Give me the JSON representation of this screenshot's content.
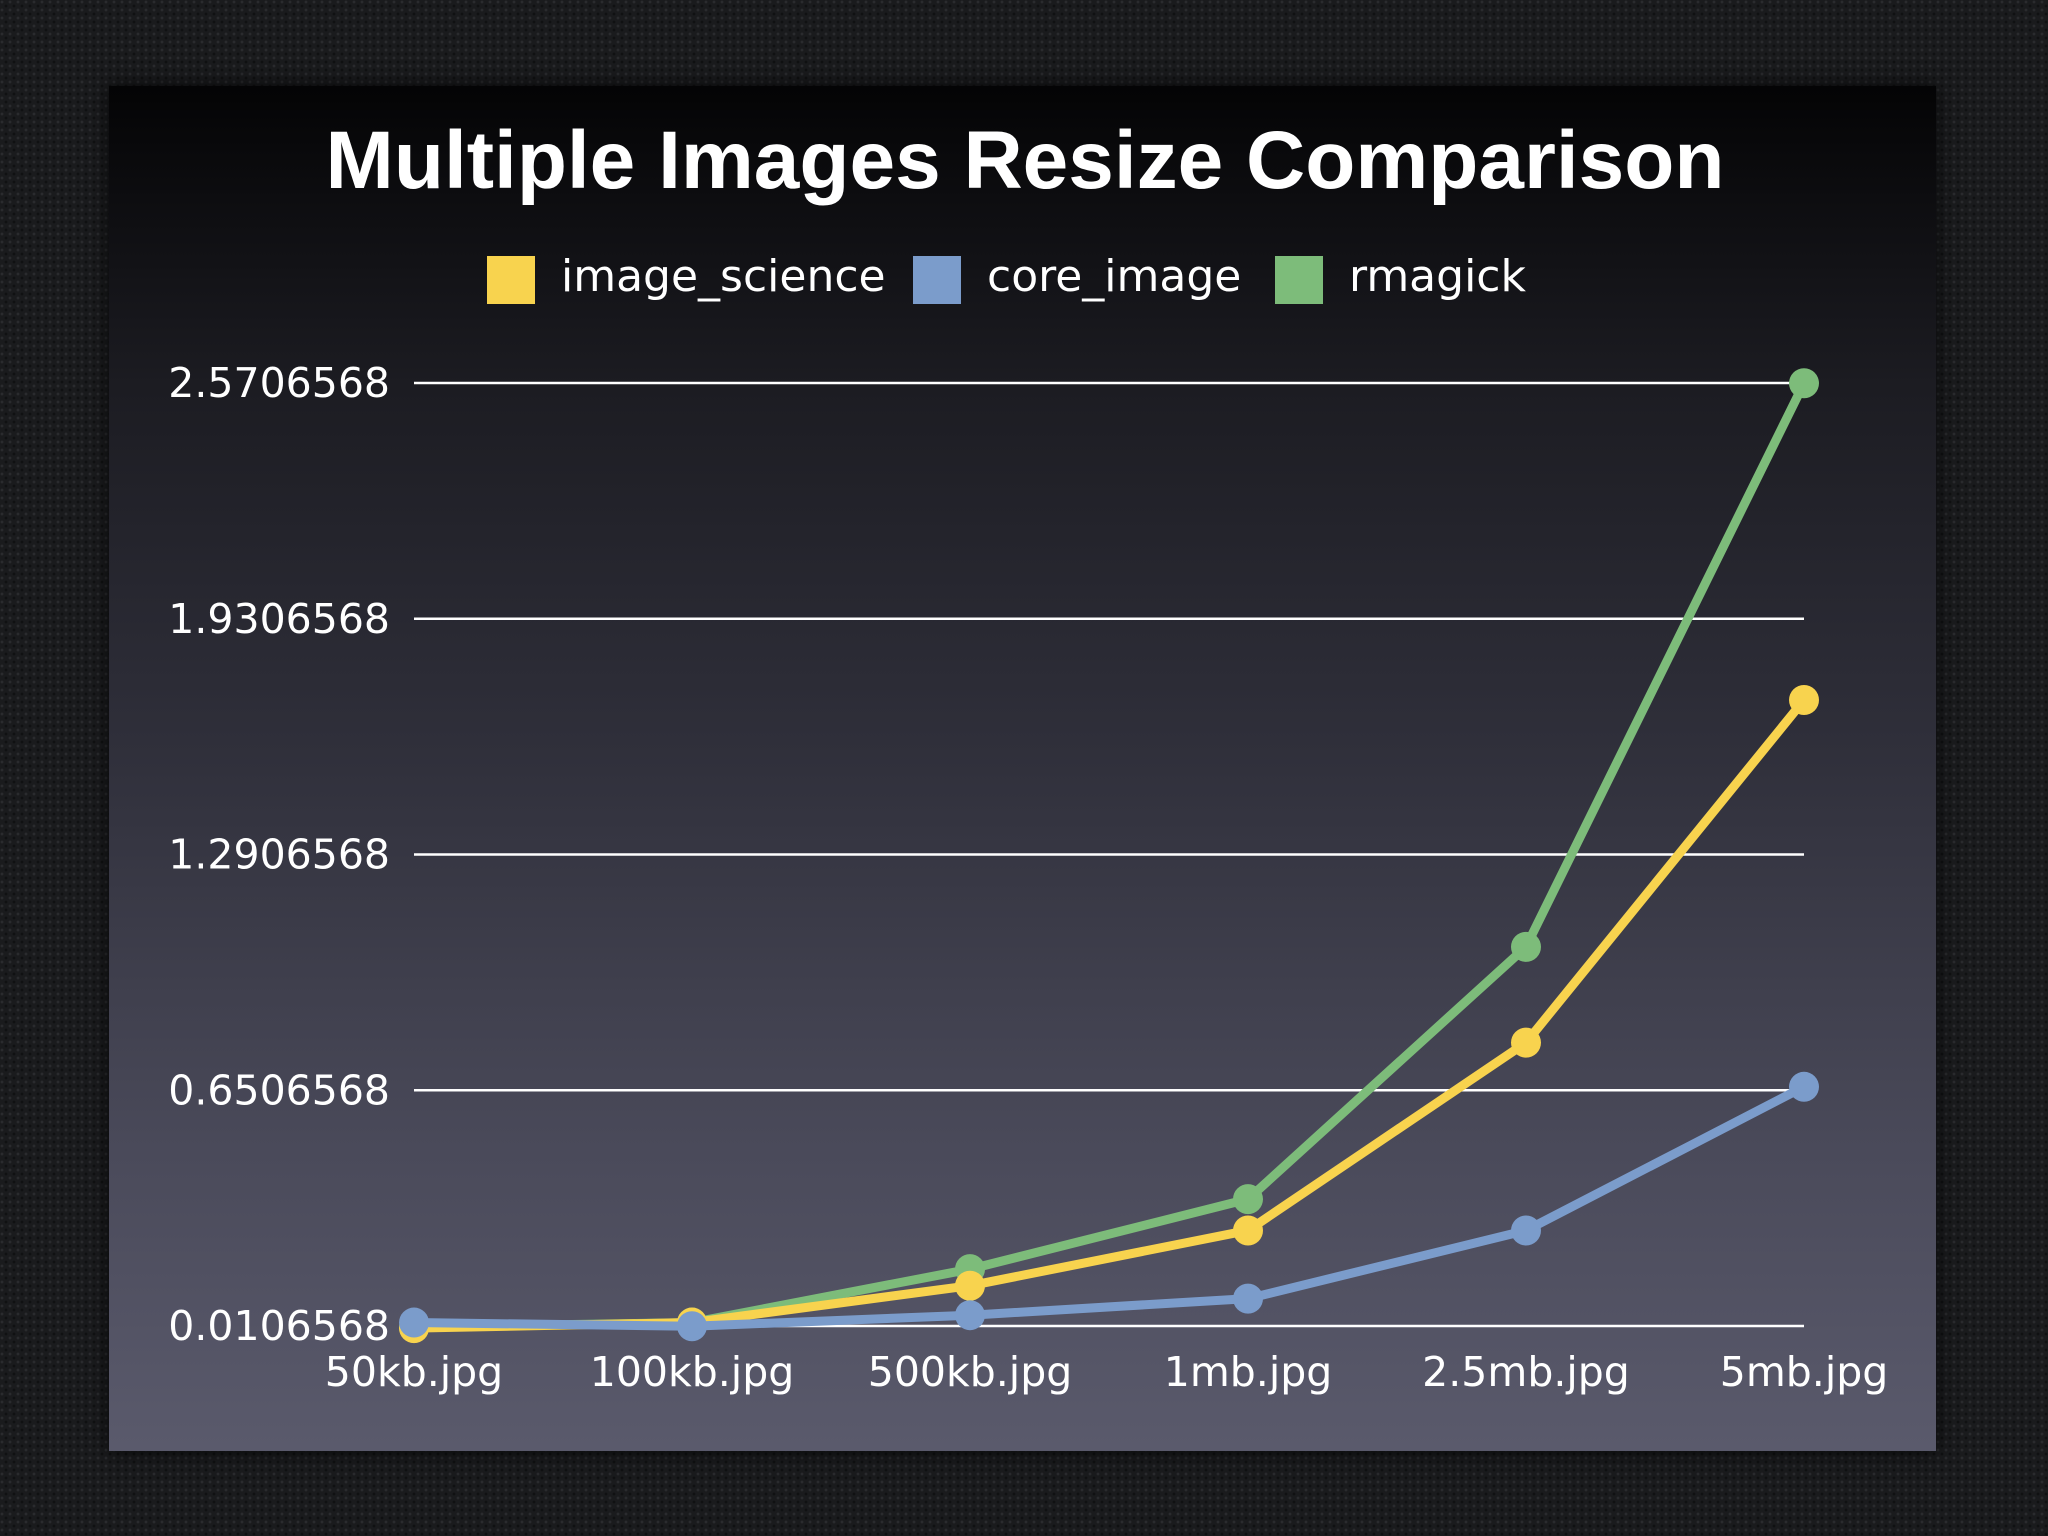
{
  "chart_data": {
    "type": "line",
    "title": "Multiple Images Resize Comparison",
    "xlabel": "",
    "ylabel": "",
    "categories": [
      "50kb.jpg",
      "100kb.jpg",
      "500kb.jpg",
      "1mb.jpg",
      "2.5mb.jpg",
      "5mb.jpg"
    ],
    "y_ticks": [
      "0.0106568",
      "0.6506568",
      "1.2906568",
      "1.9306568",
      "2.5706568"
    ],
    "ylim": [
      0.0106568,
      2.5706568
    ],
    "grid": true,
    "legend_position": "top",
    "series": [
      {
        "name": "image_science",
        "color": "#f8d34e",
        "values": [
          0.005,
          0.02,
          0.12,
          0.27,
          0.78,
          1.71
        ]
      },
      {
        "name": "core_image",
        "color": "#7b9ccb",
        "values": [
          0.02,
          0.01,
          0.04,
          0.085,
          0.27,
          0.66
        ]
      },
      {
        "name": "rmagick",
        "color": "#7dbc7a",
        "values": [
          0.008,
          0.02,
          0.165,
          0.355,
          1.04,
          2.57
        ]
      }
    ]
  }
}
